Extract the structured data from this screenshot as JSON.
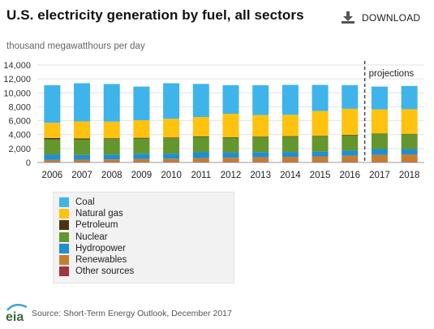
{
  "header": {
    "title": "U.S. electricity generation by fuel, all sectors",
    "download_label": "DOWNLOAD",
    "download_icon": "download-icon"
  },
  "chart_data": {
    "type": "bar",
    "stacked": true,
    "title": "U.S. electricity generation by fuel, all sectors",
    "ylabel": "thousand megawatthours per day",
    "xlabel": "",
    "ylim": [
      0,
      14000
    ],
    "yticks": [
      0,
      2000,
      4000,
      6000,
      8000,
      10000,
      12000,
      14000
    ],
    "ytick_labels": [
      "0",
      "2,000",
      "4,000",
      "6,000",
      "8,000",
      "10,000",
      "12,000",
      "14,000"
    ],
    "grid": true,
    "legend_position": "bottom-left",
    "categories": [
      "2006",
      "2007",
      "2008",
      "2009",
      "2010",
      "2011",
      "2012",
      "2013",
      "2014",
      "2015",
      "2016",
      "2017",
      "2018"
    ],
    "projection_start": "2017",
    "projection_label": "projections",
    "series": [
      {
        "name": "Other sources",
        "color": "#a33340",
        "values": [
          110,
          110,
          110,
          110,
          110,
          110,
          110,
          110,
          110,
          110,
          110,
          110,
          110
        ]
      },
      {
        "name": "Renewables",
        "color": "#c87d2e",
        "values": [
          260,
          300,
          340,
          400,
          440,
          520,
          580,
          640,
          700,
          760,
          860,
          980,
          1050
        ]
      },
      {
        "name": "Hydropower",
        "color": "#1f8fd1",
        "values": [
          790,
          680,
          700,
          750,
          720,
          880,
          760,
          730,
          700,
          690,
          730,
          840,
          760
        ]
      },
      {
        "name": "Nuclear",
        "color": "#64962e",
        "values": [
          2160,
          2200,
          2200,
          2170,
          2210,
          2160,
          2100,
          2160,
          2180,
          2180,
          2200,
          2160,
          2120
        ]
      },
      {
        "name": "Petroleum",
        "color": "#4a3410",
        "values": [
          180,
          160,
          120,
          110,
          100,
          90,
          80,
          80,
          90,
          80,
          70,
          70,
          70
        ]
      },
      {
        "name": "Natural gas",
        "color": "#ffc20e",
        "values": [
          2200,
          2450,
          2400,
          2520,
          2700,
          2770,
          3370,
          3090,
          3070,
          3570,
          3740,
          3460,
          3540
        ]
      },
      {
        "name": "Coal",
        "color": "#3fb4ea",
        "values": [
          5400,
          5480,
          5400,
          4840,
          5100,
          4750,
          4100,
          4290,
          4290,
          3750,
          3400,
          3280,
          3340
        ]
      }
    ]
  },
  "legend": {
    "items": [
      {
        "label": "Coal",
        "color": "#3fb4ea"
      },
      {
        "label": "Natural gas",
        "color": "#ffc20e"
      },
      {
        "label": "Petroleum",
        "color": "#4a3410"
      },
      {
        "label": "Nuclear",
        "color": "#64962e"
      },
      {
        "label": "Hydropower",
        "color": "#1f8fd1"
      },
      {
        "label": "Renewables",
        "color": "#c87d2e"
      },
      {
        "label": "Other sources",
        "color": "#a33340"
      }
    ]
  },
  "footer": {
    "logo_text": "eia",
    "source": "Source: Short-Term Energy Outlook, December 2017"
  }
}
